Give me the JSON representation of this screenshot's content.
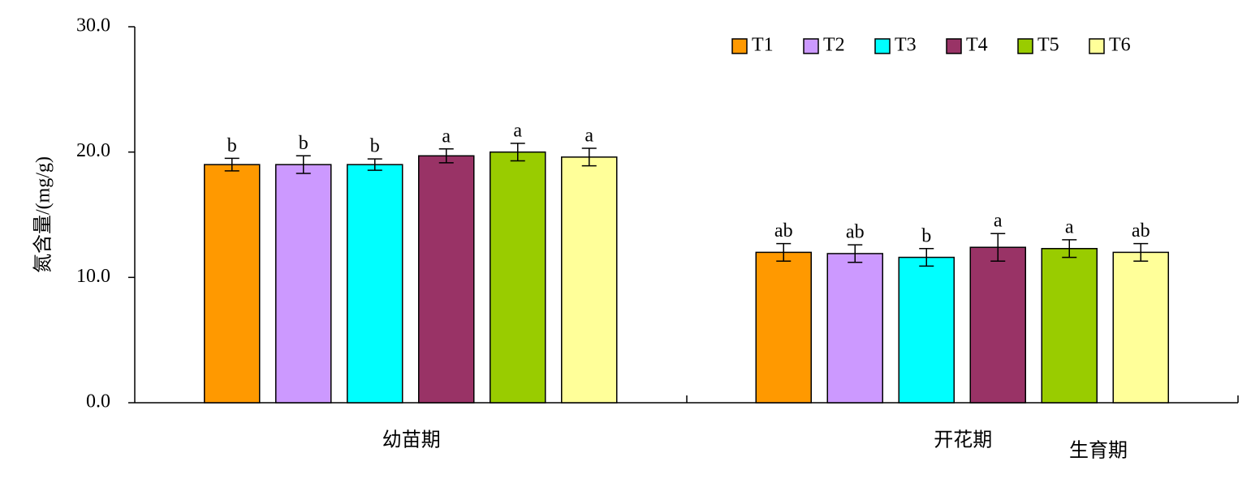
{
  "chart_data": {
    "type": "bar",
    "ylabel": "氮含量/(mg/g)",
    "xlabel": "生育期",
    "categories": [
      "幼苗期",
      "开花期"
    ],
    "ylim": [
      0,
      30
    ],
    "yticks": [
      {
        "value": 0,
        "label": "0.0"
      },
      {
        "value": 10,
        "label": "10.0"
      },
      {
        "value": 20,
        "label": "20.0"
      },
      {
        "value": 30,
        "label": "30.0"
      }
    ],
    "legend": "top-right",
    "series": [
      {
        "name": "T1",
        "color": "#ff9900",
        "values": [
          19.0,
          12.0
        ],
        "errors": [
          0.5,
          0.7
        ],
        "labels": [
          "b",
          "ab"
        ]
      },
      {
        "name": "T2",
        "color": "#cc99ff",
        "values": [
          19.0,
          11.9
        ],
        "errors": [
          0.7,
          0.7
        ],
        "labels": [
          "b",
          "ab"
        ]
      },
      {
        "name": "T3",
        "color": "#00ffff",
        "values": [
          19.0,
          11.6
        ],
        "errors": [
          0.45,
          0.7
        ],
        "labels": [
          "b",
          "b"
        ]
      },
      {
        "name": "T4",
        "color": "#993366",
        "values": [
          19.7,
          12.4
        ],
        "errors": [
          0.55,
          1.1
        ],
        "labels": [
          "a",
          "a"
        ]
      },
      {
        "name": "T5",
        "color": "#99cc00",
        "values": [
          20.0,
          12.3
        ],
        "errors": [
          0.7,
          0.7
        ],
        "labels": [
          "a",
          "a"
        ]
      },
      {
        "name": "T6",
        "color": "#ffff99",
        "values": [
          19.6,
          12.0
        ],
        "errors": [
          0.7,
          0.7
        ],
        "labels": [
          "a",
          "ab"
        ]
      }
    ]
  }
}
